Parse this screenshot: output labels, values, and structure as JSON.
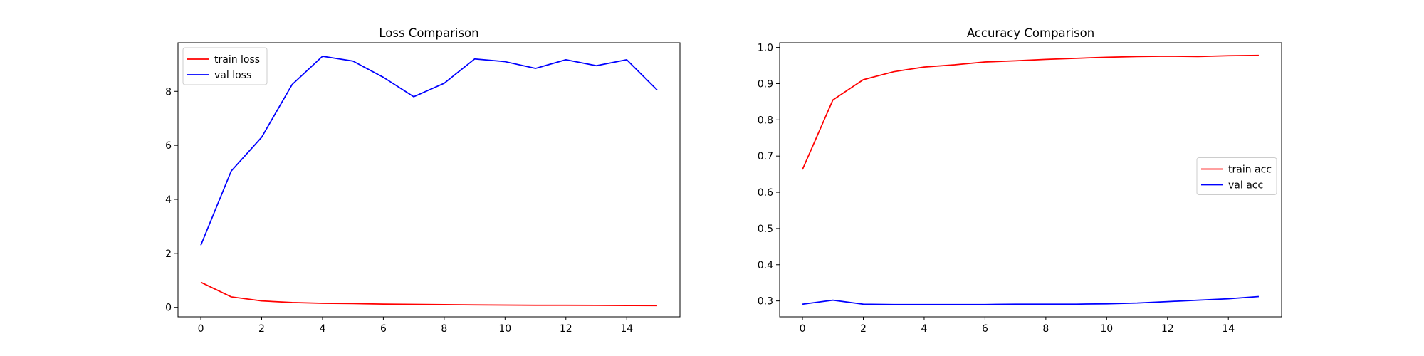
{
  "chart_data": [
    {
      "type": "line",
      "title": "Loss Comparison",
      "xlabel": "",
      "ylabel": "",
      "x": [
        0,
        1,
        2,
        3,
        4,
        5,
        6,
        7,
        8,
        9,
        10,
        11,
        12,
        13,
        14,
        15
      ],
      "xlim": [
        -0.75,
        15.75
      ],
      "ylim": [
        -0.35,
        9.8
      ],
      "xticks": [
        0,
        2,
        4,
        6,
        8,
        10,
        12,
        14
      ],
      "yticks": [
        0,
        2,
        4,
        6,
        8
      ],
      "legend": "top-left",
      "grid": false,
      "series": [
        {
          "name": "train loss",
          "color": "#ff0000",
          "values": [
            0.93,
            0.39,
            0.24,
            0.18,
            0.15,
            0.14,
            0.12,
            0.11,
            0.1,
            0.09,
            0.085,
            0.08,
            0.078,
            0.075,
            0.07,
            0.065
          ]
        },
        {
          "name": "val loss",
          "color": "#0000ff",
          "values": [
            2.3,
            5.05,
            6.3,
            8.25,
            9.3,
            9.12,
            8.52,
            7.8,
            8.3,
            9.2,
            9.1,
            8.85,
            9.17,
            8.95,
            9.17,
            8.05
          ]
        }
      ]
    },
    {
      "type": "line",
      "title": "Accuracy Comparison",
      "xlabel": "",
      "ylabel": "",
      "x": [
        0,
        1,
        2,
        3,
        4,
        5,
        6,
        7,
        8,
        9,
        10,
        11,
        12,
        13,
        14,
        15
      ],
      "xlim": [
        -0.75,
        15.75
      ],
      "ylim": [
        0.256,
        1.013
      ],
      "xticks": [
        0,
        2,
        4,
        6,
        8,
        10,
        12,
        14
      ],
      "yticks": [
        0.3,
        0.4,
        0.5,
        0.6,
        0.7,
        0.8,
        0.9,
        1.0
      ],
      "ytick_labels": [
        "0.3",
        "0.4",
        "0.5",
        "0.6",
        "0.7",
        "0.8",
        "0.9",
        "1.0"
      ],
      "legend": "center-right",
      "grid": false,
      "series": [
        {
          "name": "train acc",
          "color": "#ff0000",
          "values": [
            0.663,
            0.855,
            0.911,
            0.933,
            0.946,
            0.952,
            0.96,
            0.963,
            0.967,
            0.97,
            0.973,
            0.975,
            0.976,
            0.975,
            0.977,
            0.978
          ]
        },
        {
          "name": "val acc",
          "color": "#0000ff",
          "values": [
            0.291,
            0.302,
            0.291,
            0.29,
            0.29,
            0.29,
            0.29,
            0.291,
            0.291,
            0.291,
            0.292,
            0.294,
            0.298,
            0.302,
            0.306,
            0.312
          ]
        }
      ]
    }
  ]
}
